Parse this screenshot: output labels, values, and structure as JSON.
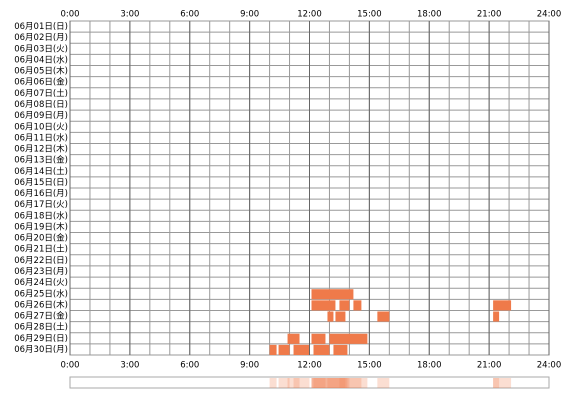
{
  "chart_data": {
    "type": "timeline",
    "categories": [
      "06月01日(日)",
      "06月02日(月)",
      "06月03日(火)",
      "06月04日(水)",
      "06月05日(木)",
      "06月06日(金)",
      "06月07日(土)",
      "06月08日(日)",
      "06月09日(月)",
      "06月10日(火)",
      "06月11日(水)",
      "06月12日(木)",
      "06月13日(金)",
      "06月14日(土)",
      "06月15日(日)",
      "06月16日(月)",
      "06月17日(火)",
      "06月18日(水)",
      "06月19日(木)",
      "06月20日(金)",
      "06月21日(土)",
      "06月22日(日)",
      "06月23日(月)",
      "06月24日(火)",
      "06月25日(水)",
      "06月26日(木)",
      "06月27日(金)",
      "06月28日(土)",
      "06月29日(日)",
      "06月30日(月)"
    ],
    "values": [
      [],
      [],
      [],
      [],
      [],
      [],
      [],
      [],
      [],
      [],
      [],
      [],
      [],
      [],
      [],
      [],
      [],
      [],
      [],
      [],
      [],
      [],
      [],
      [],
      [
        [
          12.1,
          14.2
        ]
      ],
      [
        [
          12.1,
          13.3
        ],
        [
          13.5,
          14.0
        ],
        [
          14.2,
          14.6
        ],
        [
          21.2,
          22.1
        ]
      ],
      [
        [
          12.9,
          13.2
        ],
        [
          13.3,
          13.8
        ],
        [
          15.4,
          16.0
        ],
        [
          21.2,
          21.5
        ]
      ],
      [],
      [
        [
          10.9,
          11.5
        ],
        [
          12.1,
          12.8
        ],
        [
          13.0,
          14.9
        ]
      ],
      [
        [
          10.0,
          10.35
        ],
        [
          10.45,
          11.0
        ],
        [
          11.2,
          12.0
        ],
        [
          12.2,
          13.0
        ],
        [
          13.2,
          13.9
        ]
      ]
    ],
    "color": "#ef7a4a",
    "xlim": [
      0,
      24
    ],
    "xticks": [
      {
        "value": 0,
        "label": "0:00"
      },
      {
        "value": 3,
        "label": "3:00"
      },
      {
        "value": 6,
        "label": "6:00"
      },
      {
        "value": 9,
        "label": "9:00"
      },
      {
        "value": 12,
        "label": "12:00"
      },
      {
        "value": 15,
        "label": "15:00"
      },
      {
        "value": 18,
        "label": "18:00"
      },
      {
        "value": 21,
        "label": "21:00"
      },
      {
        "value": 24,
        "label": "24:00"
      }
    ],
    "xgrid": [
      0,
      1,
      2,
      3,
      4,
      5,
      6,
      7,
      8,
      9,
      10,
      11,
      12,
      13,
      14,
      15,
      16,
      17,
      18,
      19,
      20,
      21,
      22,
      23,
      24
    ],
    "grid": true
  }
}
